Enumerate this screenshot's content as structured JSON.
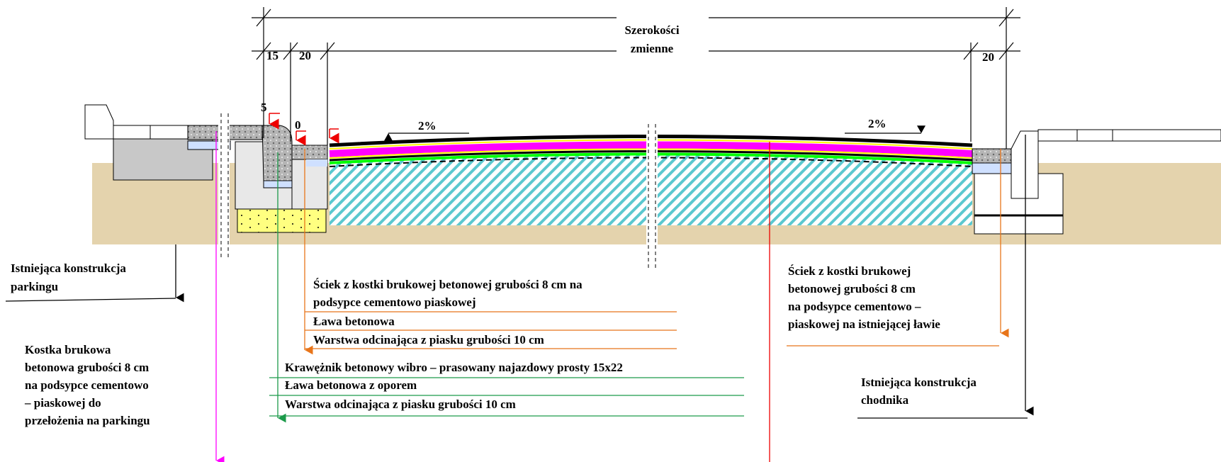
{
  "dimensions": {
    "width_label": [
      "Szerokości",
      "zmienne"
    ],
    "left_curb": "15",
    "left_gutter": "20",
    "right_gutter": "20",
    "drop_curb": "5",
    "drop_gutter": "0",
    "slope_left": "2%",
    "slope_right": "2%"
  },
  "labels": {
    "parking": [
      "Istniejąca konstrukcja",
      "parkingu"
    ],
    "paving": [
      "Kostka brukowa",
      "betonowa grubości 8 cm",
      "na podsypce cementowo",
      "– piaskowej  do",
      "przełożenia na parkingu"
    ],
    "gutter_left": [
      "Ściek z kostki brukowej betonowej grubości 8 cm na",
      "podsypce cementowo piaskowej",
      "Ława betonowa",
      "Warstwa odcinająca z piasku grubości 10 cm"
    ],
    "curb": [
      "Krawężnik betonowy wibro – prasowany najazdowy prosty 15x22",
      "Ława betonowa z oporem",
      "Warstwa odcinająca z piasku grubości 10 cm"
    ],
    "gutter_right": [
      "Ściek  z kostki brukowej",
      "betonowej  grubości 8 cm",
      " na podsypce cementowo –",
      "piaskowej na istniejącej ławie"
    ],
    "sidewalk": [
      "Istniejąca konstrukcja",
      "chodnika"
    ]
  }
}
